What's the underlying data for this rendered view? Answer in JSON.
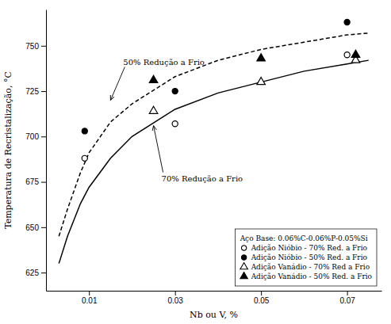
{
  "chart_data": {
    "type": "scatter",
    "xlabel": "Nb ou V, %",
    "ylabel": "Temperatura de Recristalização, °C",
    "xlim": [
      0.0,
      0.078
    ],
    "ylim": [
      615,
      770
    ],
    "xticks": [
      0.01,
      0.03,
      0.05,
      0.07
    ],
    "yticks": [
      625,
      650,
      675,
      700,
      725,
      750
    ],
    "grid": false,
    "legend": "lower right",
    "legend_title": "Aço Base: 0.06%C-0.06%P-0.05%Si",
    "series": [
      {
        "type": "line",
        "color": "#000000",
        "line_style": "solid",
        "x": [
          0.003,
          0.005,
          0.008,
          0.01,
          0.015,
          0.02,
          0.03,
          0.04,
          0.05,
          0.06,
          0.07,
          0.075
        ],
        "values": [
          630,
          645,
          663,
          672,
          688,
          700,
          715,
          724,
          730,
          736,
          740,
          742
        ]
      },
      {
        "type": "line",
        "color": "#000000",
        "line_style": "dashed",
        "x": [
          0.003,
          0.005,
          0.008,
          0.01,
          0.015,
          0.02,
          0.03,
          0.04,
          0.05,
          0.06,
          0.07,
          0.075
        ],
        "values": [
          645,
          660,
          680,
          691,
          708,
          718,
          733,
          742,
          748,
          752,
          756,
          757
        ]
      },
      {
        "name": "Adição Nióbio - 70% Red. a Frio",
        "type": "scatter",
        "marker": "circle-open",
        "color": "#000000",
        "x": [
          0.009,
          0.03,
          0.07
        ],
        "values": [
          688,
          707,
          745
        ]
      },
      {
        "name": "Adição Nióbio - 50% Red. a Frio",
        "type": "scatter",
        "marker": "circle",
        "color": "#000000",
        "x": [
          0.009,
          0.03,
          0.07
        ],
        "values": [
          703,
          725,
          763
        ]
      },
      {
        "name": "Adição Vanádio - 70% Red a Frio",
        "type": "scatter",
        "marker": "triangle-open",
        "color": "#000000",
        "x": [
          0.025,
          0.05,
          0.072
        ],
        "values": [
          714,
          730,
          742
        ]
      },
      {
        "name": "Adição Vanádio - 50% Red. a Frio",
        "type": "scatter",
        "marker": "triangle",
        "color": "#000000",
        "x": [
          0.025,
          0.05,
          0.072
        ],
        "values": [
          731,
          743,
          745
        ]
      }
    ],
    "annotations": [
      {
        "text": "50% Redução a Frio",
        "x": 0.015,
        "y": 720
      },
      {
        "text": "70% Redução a Frio",
        "x": 0.025,
        "y": 706
      }
    ]
  }
}
